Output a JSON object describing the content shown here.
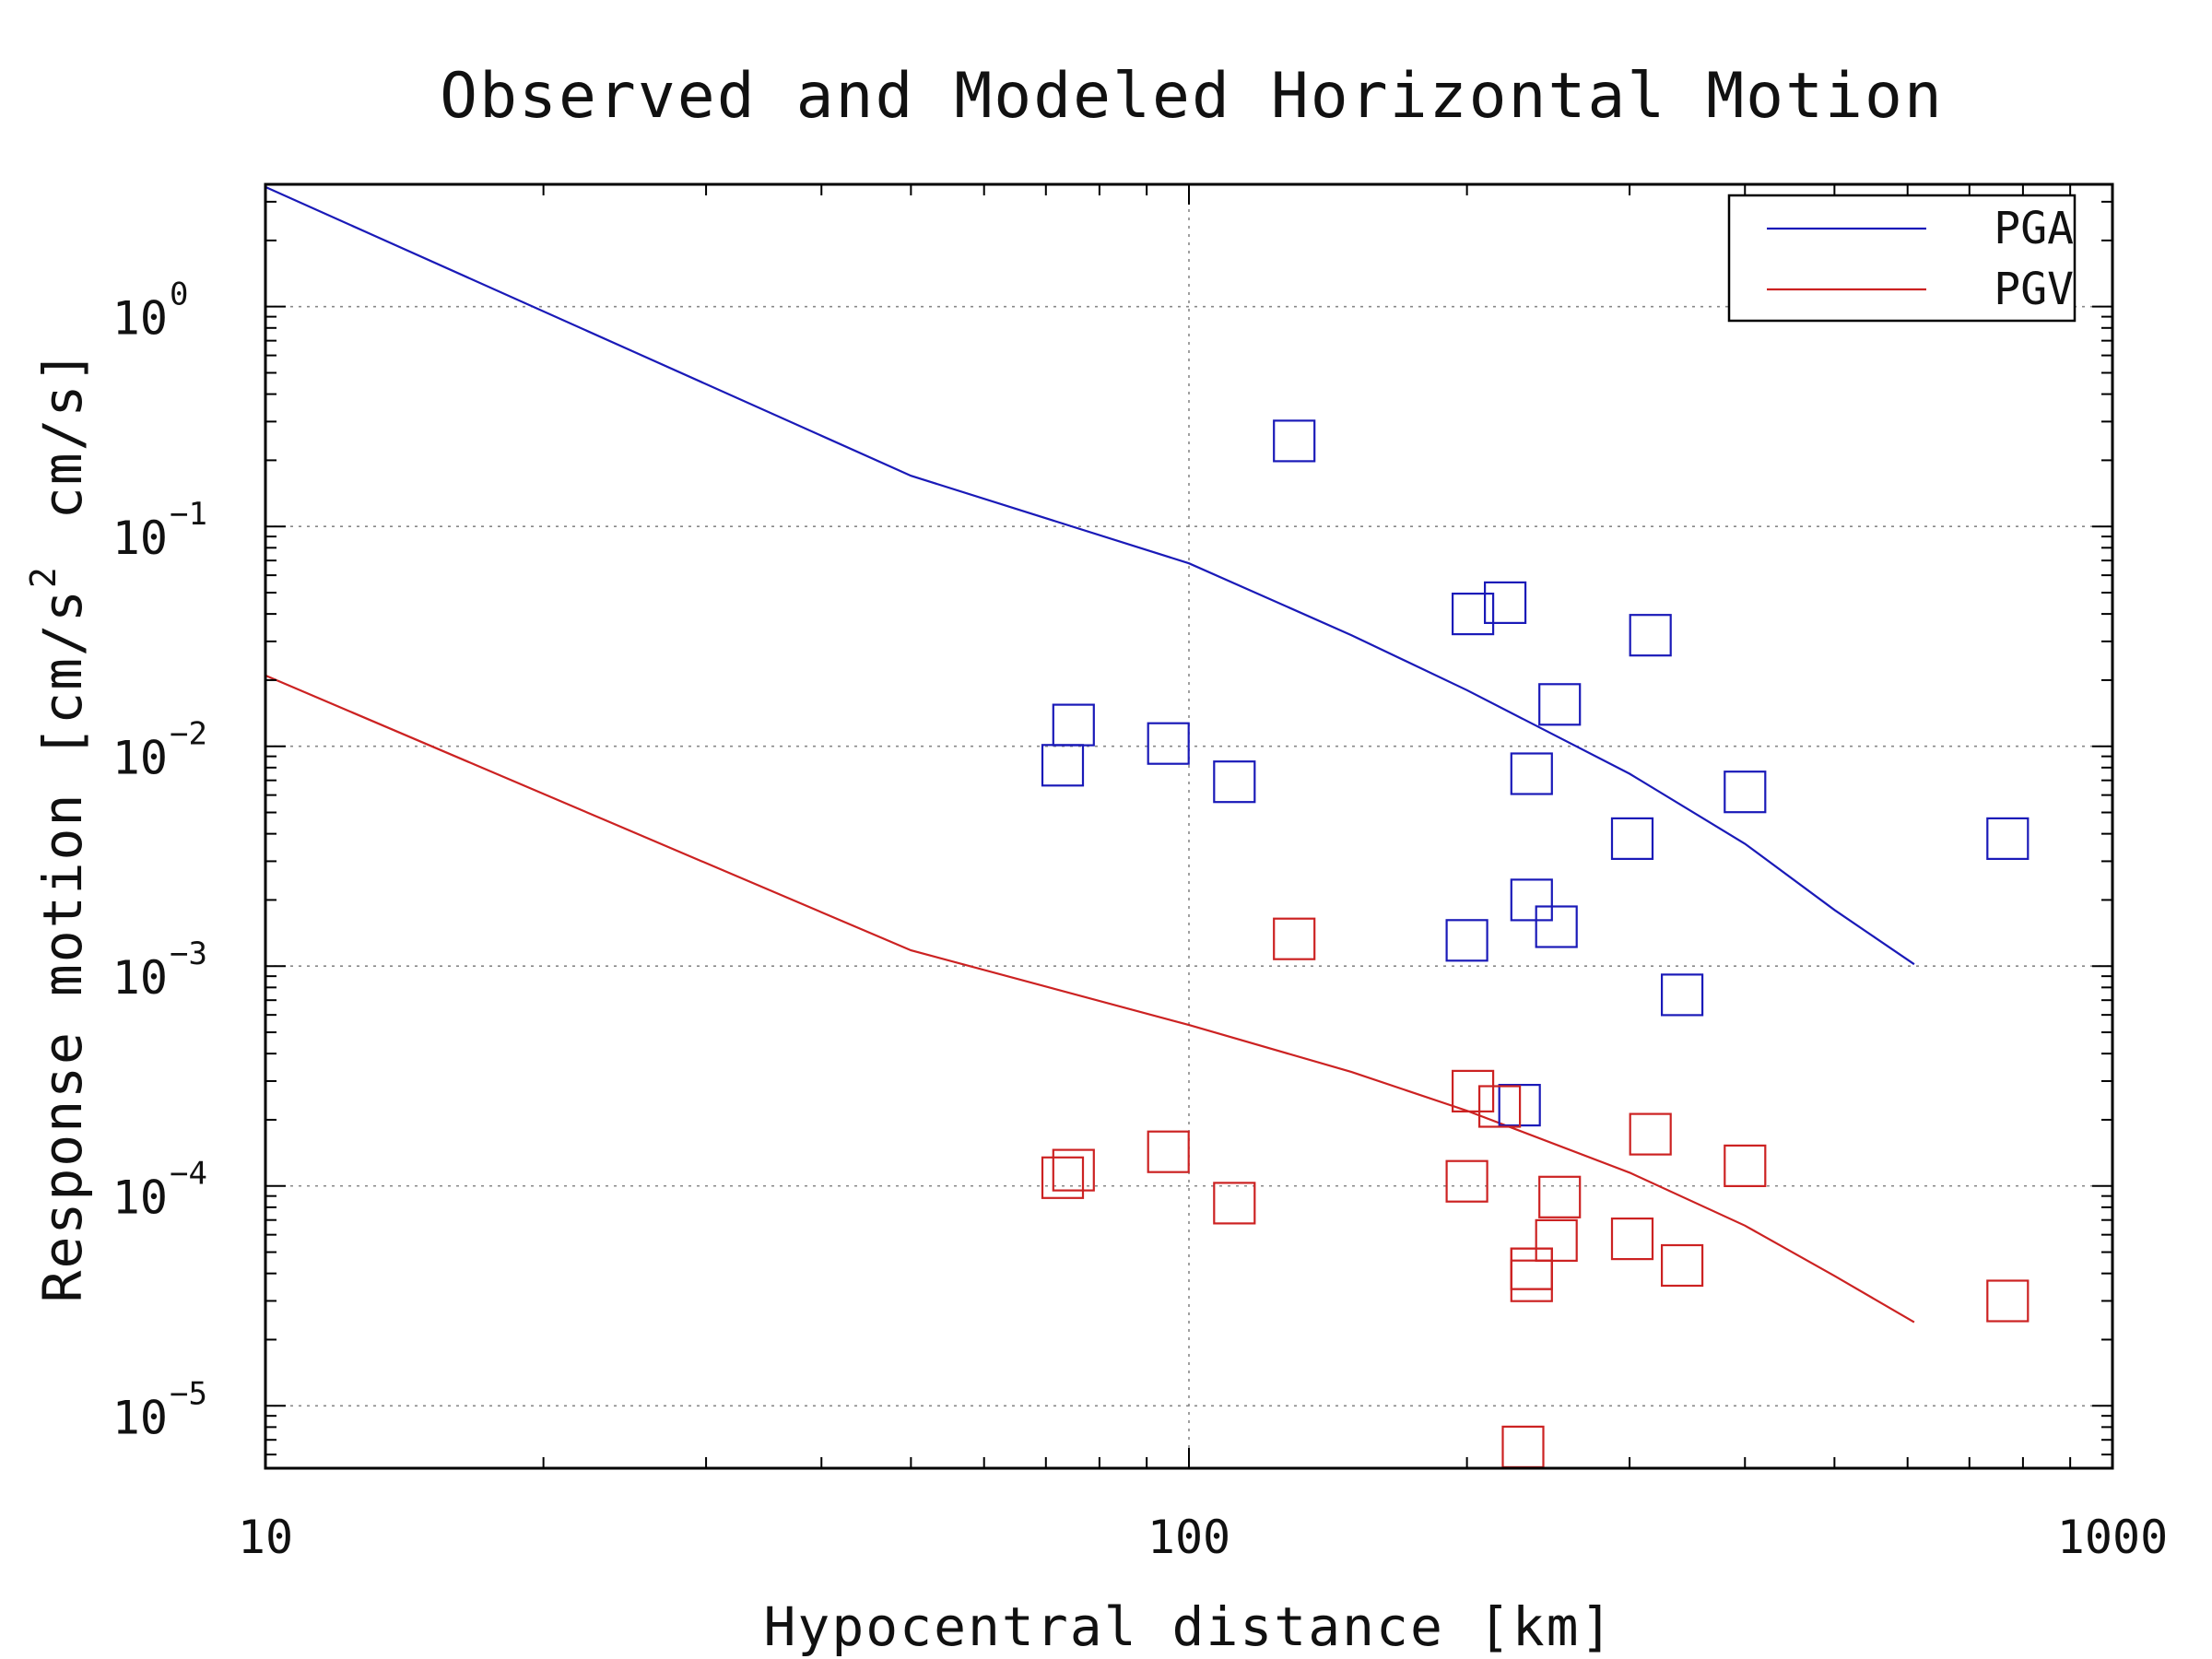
{
  "chart_data": {
    "type": "scatter",
    "title": "Observed and Modeled Horizontal Motion",
    "xlabel": "Hypocentral distance [km]",
    "ylabel": {
      "prefix": "Response motion [cm/s",
      "superscript": "2",
      "suffix": "cm/s]"
    },
    "x_scale": "log",
    "y_scale": "log",
    "xlim": [
      10,
      1000
    ],
    "ylim": [
      5.2e-06,
      3.6
    ],
    "x_ticks": [
      {
        "value": 10,
        "label": "10"
      },
      {
        "value": 100,
        "label": "100"
      },
      {
        "value": 1000,
        "label": "1000"
      }
    ],
    "y_ticks": [
      {
        "value": 1,
        "base": "10",
        "exp": "0"
      },
      {
        "value": 0.1,
        "base": "10",
        "exp": "−1"
      },
      {
        "value": 0.01,
        "base": "10",
        "exp": "−2"
      },
      {
        "value": 0.001,
        "base": "10",
        "exp": "−3"
      },
      {
        "value": 0.0001,
        "base": "10",
        "exp": "−4"
      },
      {
        "value": 1e-05,
        "base": "10",
        "exp": "−5"
      }
    ],
    "grid": true,
    "legend": {
      "position": "top-right",
      "entries": [
        "PGA",
        "PGV"
      ]
    },
    "colors": {
      "PGA": "#1a1ab8",
      "PGV": "#cc2222",
      "axis": "#000000",
      "grid": "#888888"
    },
    "series": [
      {
        "name": "PGA",
        "kind": "line",
        "x": [
          10,
          50,
          100,
          150,
          200,
          300,
          400,
          500,
          610
        ],
        "y": [
          3.5,
          0.17,
          0.068,
          0.032,
          0.018,
          0.0075,
          0.0036,
          0.0018,
          0.00102
        ]
      },
      {
        "name": "PGV",
        "kind": "line",
        "x": [
          10,
          50,
          100,
          150,
          200,
          300,
          400,
          500,
          610
        ],
        "y": [
          0.021,
          0.00118,
          0.00054,
          0.00033,
          0.00022,
          0.000115,
          6.6e-05,
          3.9e-05,
          2.4e-05
        ]
      },
      {
        "name": "PGA",
        "kind": "observed",
        "x": [
          130,
          203,
          220,
          316,
          75,
          73,
          95,
          112,
          235,
          252,
          302,
          400,
          770,
          235,
          200,
          250,
          342,
          228
        ],
        "y": [
          0.245,
          0.04,
          0.045,
          0.032,
          0.0125,
          0.0082,
          0.0103,
          0.0069,
          0.0075,
          0.0155,
          0.0038,
          0.0062,
          0.0038,
          0.002,
          0.00131,
          0.00151,
          0.00074,
          0.000233
        ]
      },
      {
        "name": "PGV",
        "kind": "observed",
        "x": [
          130,
          203,
          217,
          316,
          75,
          73,
          95,
          112,
          235,
          252,
          302,
          400,
          770,
          200,
          250,
          235,
          235,
          342,
          230
        ],
        "y": [
          0.00133,
          0.00027,
          0.00023,
          0.000172,
          0.000118,
          0.000109,
          0.000143,
          8.35e-05,
          4.2e-05,
          8.9e-05,
          5.75e-05,
          0.0001235,
          3e-05,
          0.000105,
          5.65e-05,
          3.7e-05,
          4.2e-05,
          4.35e-05,
          6.5e-06
        ]
      }
    ]
  }
}
